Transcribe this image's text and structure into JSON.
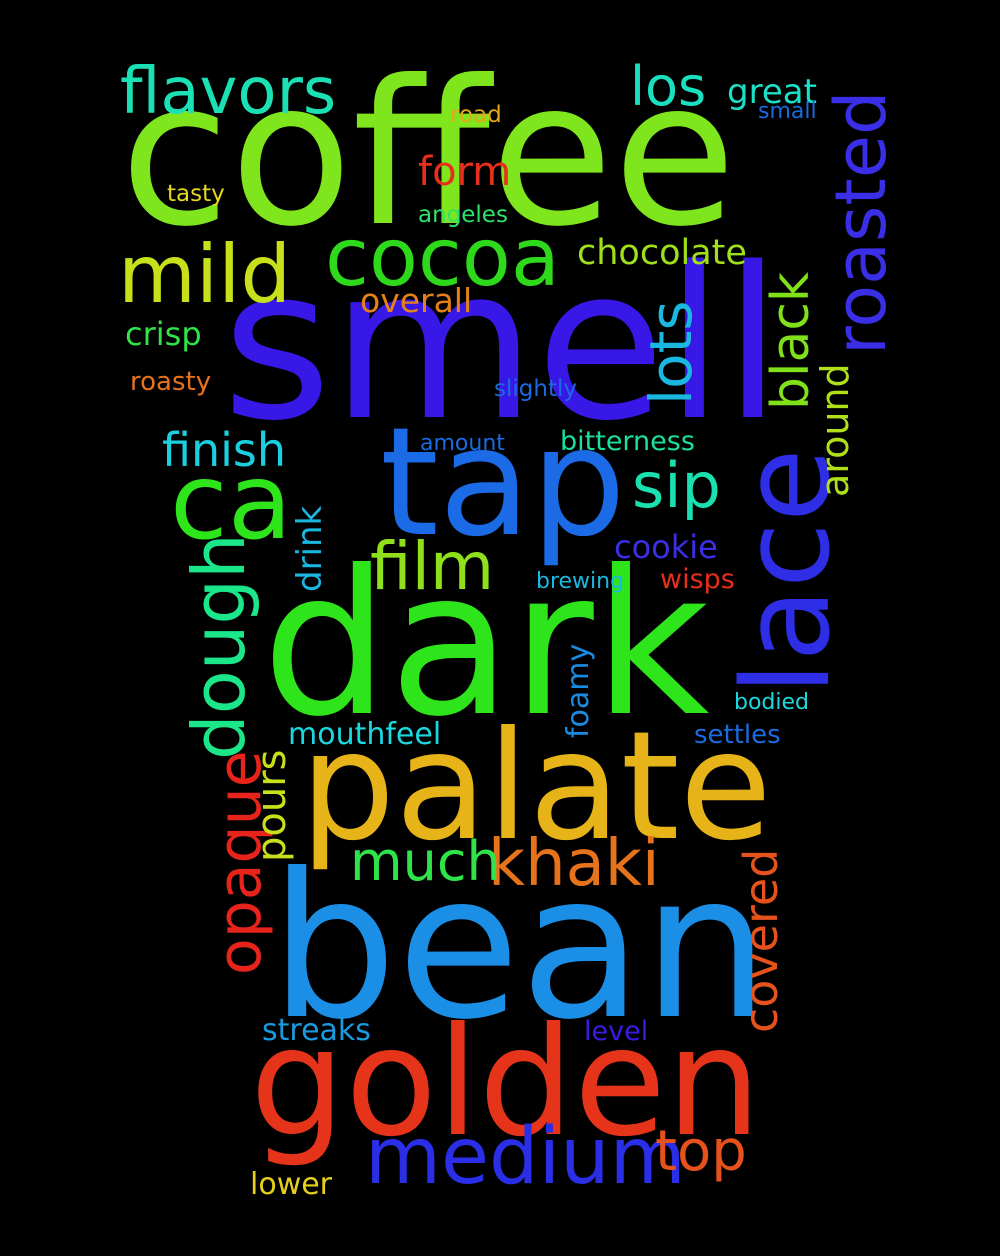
{
  "words": {
    "coffee": {
      "text": "coffee",
      "color": "#7fe51c"
    },
    "smell": {
      "text": "smell",
      "color": "#3718e6"
    },
    "dark": {
      "text": "dark",
      "color": "#2ee41b"
    },
    "palate": {
      "text": "palate",
      "color": "#e6b418"
    },
    "bean": {
      "text": "bean",
      "color": "#1b8fe6"
    },
    "golden": {
      "text": "golden",
      "color": "#e6341b"
    },
    "tap": {
      "text": "tap",
      "color": "#1b6ae6"
    },
    "lace": {
      "text": "lace",
      "color": "#2e2ee6"
    },
    "ca": {
      "text": "ca",
      "color": "#2ee41b"
    },
    "medium": {
      "text": "medium",
      "color": "#2a2ee6"
    },
    "cocoa": {
      "text": "cocoa",
      "color": "#2ed81b"
    },
    "mild": {
      "text": "mild",
      "color": "#c7e01a"
    },
    "flavors": {
      "text": "flavors",
      "color": "#1ae0b4"
    },
    "khaki": {
      "text": "khaki",
      "color": "#e6731b"
    },
    "film": {
      "text": "film",
      "color": "#8fe01a"
    },
    "roasted": {
      "text": "roasted",
      "color": "#3a2ee6"
    },
    "dough": {
      "text": "dough",
      "color": "#1be68a"
    },
    "sip": {
      "text": "sip",
      "color": "#1ae0b0"
    },
    "much": {
      "text": "much",
      "color": "#2ee44a"
    },
    "top": {
      "text": "top",
      "color": "#e6521b"
    },
    "opaque": {
      "text": "opaque",
      "color": "#e6241b"
    },
    "lots": {
      "text": "lots",
      "color": "#1ab8e0"
    },
    "los": {
      "text": "los",
      "color": "#1ae0c0"
    },
    "black": {
      "text": "black",
      "color": "#80e01a"
    },
    "covered": {
      "text": "covered",
      "color": "#e6521b"
    },
    "finish": {
      "text": "finish",
      "color": "#1ad0e0"
    },
    "form": {
      "text": "form",
      "color": "#e6301b"
    },
    "chocolate": {
      "text": "chocolate",
      "color": "#a0e01a"
    },
    "pours": {
      "text": "pours",
      "color": "#c8e01a"
    },
    "around": {
      "text": "around",
      "color": "#b0e01a"
    },
    "great": {
      "text": "great",
      "color": "#1ae0c8"
    },
    "overall": {
      "text": "overall",
      "color": "#e6801b"
    },
    "crisp": {
      "text": "crisp",
      "color": "#2ee44a"
    },
    "cookie": {
      "text": "cookie",
      "color": "#3a2ee6"
    },
    "drink": {
      "text": "drink",
      "color": "#1ab8e0"
    },
    "mouthfeel": {
      "text": "mouthfeel",
      "color": "#1ad8e0"
    },
    "streaks": {
      "text": "streaks",
      "color": "#1a9be0"
    },
    "foamy": {
      "text": "foamy",
      "color": "#1a8be0"
    },
    "lower": {
      "text": "lower",
      "color": "#e6d01b"
    },
    "bitterness": {
      "text": "bitterness",
      "color": "#1ae09a"
    },
    "settles": {
      "text": "settles",
      "color": "#1a6be0"
    },
    "level": {
      "text": "level",
      "color": "#3a1be6"
    },
    "wisps": {
      "text": "wisps",
      "color": "#e62e1b"
    },
    "roasty": {
      "text": "roasty",
      "color": "#e6731b"
    },
    "tasty": {
      "text": "tasty",
      "color": "#e6d81b"
    },
    "road": {
      "text": "road",
      "color": "#e6a81b"
    },
    "angeles": {
      "text": "angeles",
      "color": "#2ee46a"
    },
    "small": {
      "text": "small",
      "color": "#1a6be0"
    },
    "slightly": {
      "text": "slightly",
      "color": "#1a6be0"
    },
    "amount": {
      "text": "amount",
      "color": "#1a6be0"
    },
    "brewing": {
      "text": "brewing",
      "color": "#1ab8e0"
    },
    "bodied": {
      "text": "bodied",
      "color": "#1ad8e0"
    }
  }
}
